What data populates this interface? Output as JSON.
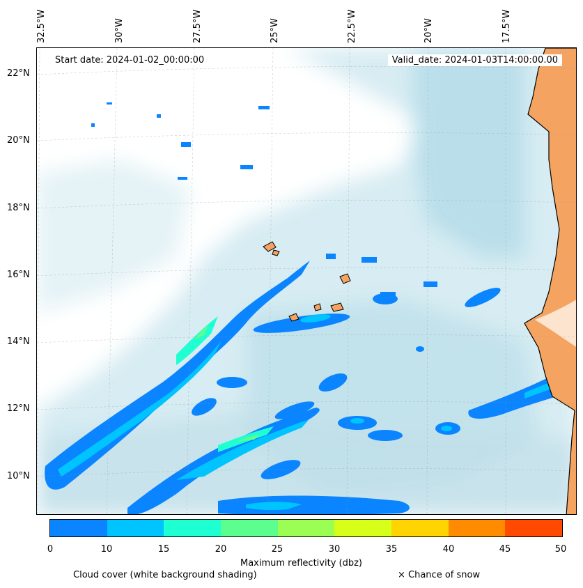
{
  "map": {
    "start_date_text": "Start date: 2024-01-02_00:00:00",
    "valid_date_text": "Valid_date: 2024-01-03T14:00:00.00",
    "longitude_labels": [
      "32.5°W",
      "30°W",
      "27.5°W",
      "25°W",
      "22.5°W",
      "20°W",
      "17.5°W"
    ],
    "latitude_labels": [
      "22°N",
      "20°N",
      "18°N",
      "16°N",
      "14°N",
      "12°N",
      "10°N"
    ]
  },
  "colorbar": {
    "ticks": [
      "0",
      "10",
      "15",
      "20",
      "25",
      "30",
      "35",
      "40",
      "45",
      "50"
    ],
    "colors": [
      "#0a84ff",
      "#00c4ff",
      "#1effd2",
      "#5cff8e",
      "#9aff52",
      "#d8ff1a",
      "#ffd400",
      "#ff8c00",
      "#ff4a00"
    ],
    "label": "Maximum reflectivity (dbz)"
  },
  "captions": {
    "cloud_cover": "Cloud cover (white background shading)",
    "snow": "× Chance of snow"
  },
  "colors": {
    "land": "#f4a460",
    "ocean_cloud": "#add8e6",
    "coast": "#000000"
  }
}
